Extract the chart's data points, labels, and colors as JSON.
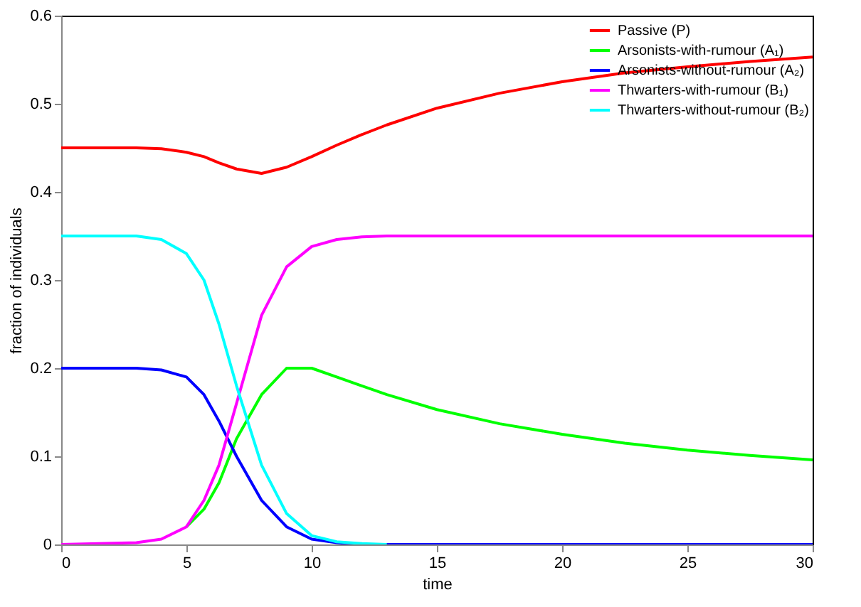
{
  "chart_data": {
    "type": "line",
    "xlabel": "time",
    "ylabel": "fraction of individuals",
    "x": [
      0,
      3,
      4,
      5,
      5.7,
      6.3,
      7,
      8,
      9,
      10,
      11,
      12,
      13,
      15,
      17.5,
      20,
      22.5,
      25,
      27.5,
      30
    ],
    "series": [
      {
        "name": "Passive (P)",
        "color": "#ff0000",
        "values": [
          0.45,
          0.45,
          0.449,
          0.445,
          0.44,
          0.433,
          0.426,
          0.421,
          0.428,
          0.44,
          0.453,
          0.465,
          0.476,
          0.495,
          0.512,
          0.525,
          0.535,
          0.542,
          0.548,
          0.553
        ]
      },
      {
        "name": "Arsonists-with-rumour (A₁)",
        "color": "#00ff00",
        "values": [
          null,
          null,
          null,
          0.02,
          0.04,
          0.07,
          0.12,
          0.17,
          0.2,
          0.2,
          0.19,
          0.18,
          0.17,
          0.153,
          0.137,
          0.125,
          0.115,
          0.107,
          0.101,
          0.096
        ]
      },
      {
        "name": "Arsonists-without-rumour (A₂)",
        "color": "#0000ff",
        "values": [
          0.2,
          0.2,
          0.198,
          0.19,
          0.17,
          0.14,
          0.1,
          0.05,
          0.02,
          0.006,
          0.002,
          0,
          0,
          0,
          0,
          0,
          0,
          0,
          0,
          0
        ]
      },
      {
        "name": "Thwarters-with-rumour (B₁)",
        "color": "#ff00ff",
        "values": [
          0,
          0.002,
          0.006,
          0.02,
          0.05,
          0.09,
          0.16,
          0.26,
          0.315,
          0.338,
          0.346,
          0.349,
          0.35,
          0.35,
          0.35,
          0.35,
          0.35,
          0.35,
          0.35,
          0.35
        ]
      },
      {
        "name": "Thwarters-without-rumour (B₂)",
        "color": "#00ffff",
        "values": [
          0.35,
          0.35,
          0.346,
          0.33,
          0.3,
          0.25,
          0.18,
          0.09,
          0.035,
          0.01,
          0.003,
          0.001,
          0,
          null,
          null,
          null,
          null,
          null,
          null,
          null
        ]
      }
    ],
    "xlim": [
      0,
      30
    ],
    "xticks": [
      0,
      5,
      10,
      15,
      20,
      25,
      30
    ],
    "ylim": [
      0,
      0.6
    ],
    "yticks": [
      {
        "value": 0,
        "label": "0"
      },
      0.1,
      0.2,
      0.3,
      0.4,
      0.5,
      0.6
    ],
    "grid": false,
    "legend": "top right",
    "marker": "none",
    "line_style": "solid"
  }
}
